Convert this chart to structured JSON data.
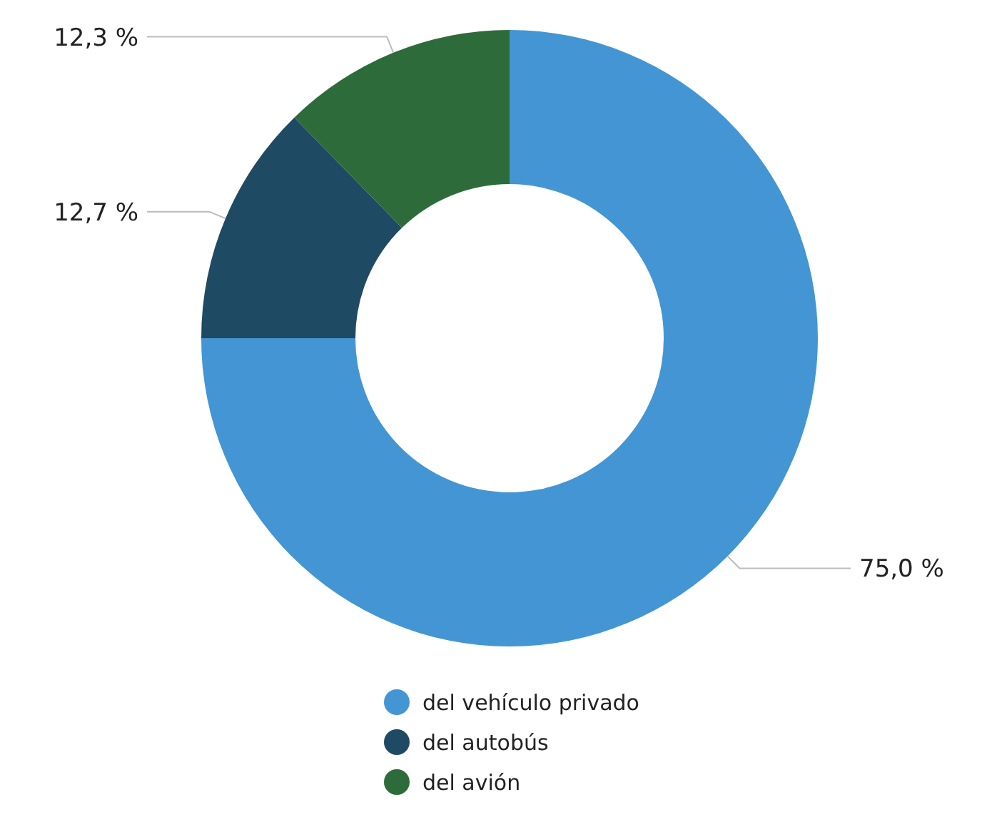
{
  "chart_data": {
    "type": "donut",
    "categories": [
      "del vehículo privado",
      "del autobús",
      "del avión"
    ],
    "values": [
      75.0,
      12.7,
      12.3
    ],
    "colors": [
      "#4396d3",
      "#1f4a63",
      "#2e6b3a"
    ],
    "value_labels": [
      "75,0 %",
      "12,7 %",
      "12,3 %"
    ],
    "legend": "bottom"
  }
}
